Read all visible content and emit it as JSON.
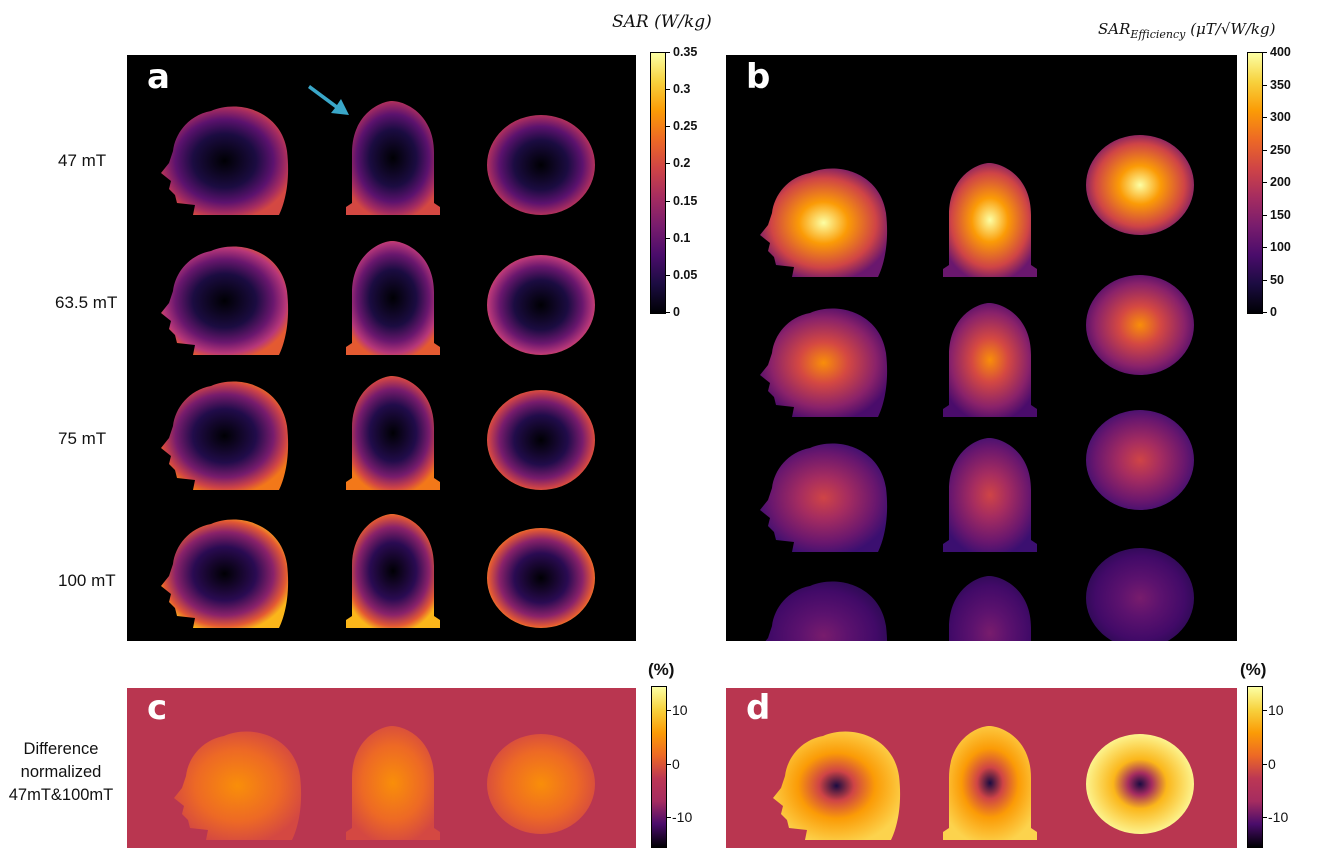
{
  "panels": {
    "a": {
      "label": "a"
    },
    "b": {
      "label": "b"
    },
    "c": {
      "label": "c"
    },
    "d": {
      "label": "d"
    }
  },
  "rows": [
    "47 mT",
    "63.5 mT",
    "75 mT",
    "100 mT"
  ],
  "difference_label": [
    "Difference",
    "normalized",
    "47mT&100mT"
  ],
  "colorbars": {
    "sar": {
      "title_main": "SAR",
      "title_unit": "(W/kg)",
      "ticks": [
        "0.35",
        "0.3",
        "0.25",
        "0.2",
        "0.15",
        "0.1",
        "0.05",
        "0"
      ]
    },
    "efficiency": {
      "title_main": "SAR",
      "title_sub": "Efficiency",
      "title_unit": "(μT/√W/kg)",
      "ticks": [
        "400",
        "350",
        "300",
        "250",
        "200",
        "150",
        "100",
        "50",
        "0"
      ]
    },
    "diff_c": {
      "title": "(%)",
      "ticks": [
        "10",
        "0",
        "-10"
      ]
    },
    "diff_d": {
      "title": "(%)",
      "ticks": [
        "10",
        "0",
        "-10"
      ]
    }
  },
  "colors": {
    "inferno_low": "#000004",
    "inferno_mid": "#bc3754",
    "inferno_high": "#fcffa4",
    "diff_background": "#b93650",
    "arrow": "#3aa7c9"
  }
}
